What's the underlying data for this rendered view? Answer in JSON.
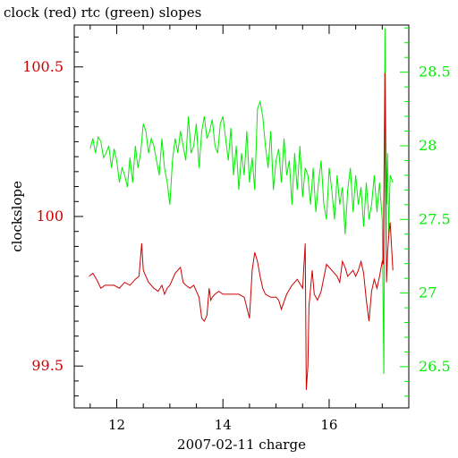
{
  "chart_data": {
    "type": "line",
    "title": "clock (red) rtc (green) slopes",
    "xlabel": "2007-02-11 charge",
    "ylabel_left": "clockslope",
    "xlim": [
      11.2,
      17.5
    ],
    "ylim_left": [
      99.36,
      100.64
    ],
    "ylim_right": [
      26.22,
      28.82
    ],
    "x_ticks": [
      12,
      14,
      16
    ],
    "y_left_ticks": [
      99.5,
      100,
      100.5
    ],
    "y_right_ticks": [
      26.5,
      27,
      27.5,
      28,
      28.5
    ],
    "grid": false,
    "colors": {
      "clock": "#cc0000",
      "rtc": "#00ee00",
      "axis": "#000000"
    },
    "series": [
      {
        "name": "clock",
        "axis": "left",
        "x": [
          11.48,
          11.55,
          11.62,
          11.7,
          11.78,
          11.85,
          11.95,
          12.05,
          12.15,
          12.25,
          12.35,
          12.42,
          12.47,
          12.5,
          12.55,
          12.6,
          12.7,
          12.78,
          12.85,
          12.9,
          12.95,
          13.0,
          13.1,
          13.2,
          13.25,
          13.3,
          13.38,
          13.45,
          13.5,
          13.55,
          13.6,
          13.65,
          13.7,
          13.74,
          13.77,
          13.8,
          13.85,
          13.92,
          14.0,
          14.1,
          14.2,
          14.3,
          14.4,
          14.5,
          14.55,
          14.6,
          14.65,
          14.7,
          14.75,
          14.8,
          14.9,
          15.0,
          15.05,
          15.1,
          15.2,
          15.3,
          15.4,
          15.5,
          15.55,
          15.57,
          15.6,
          15.62,
          15.65,
          15.68,
          15.72,
          15.78,
          15.85,
          15.95,
          16.05,
          16.15,
          16.2,
          16.25,
          16.3,
          16.35,
          16.45,
          16.5,
          16.55,
          16.6,
          16.65,
          16.7,
          16.75,
          16.8,
          16.85,
          16.9,
          16.95,
          17.0,
          17.02,
          17.05,
          17.08,
          17.1,
          17.13,
          17.15,
          17.2
        ],
        "values": [
          99.8,
          99.81,
          99.79,
          99.76,
          99.77,
          99.77,
          99.77,
          99.76,
          99.78,
          99.77,
          99.79,
          99.8,
          99.91,
          99.82,
          99.8,
          99.78,
          99.76,
          99.75,
          99.77,
          99.74,
          99.76,
          99.77,
          99.81,
          99.83,
          99.78,
          99.77,
          99.76,
          99.77,
          99.75,
          99.73,
          99.66,
          99.65,
          99.67,
          99.76,
          99.72,
          99.73,
          99.74,
          99.75,
          99.74,
          99.74,
          99.74,
          99.74,
          99.73,
          99.66,
          99.82,
          99.88,
          99.85,
          99.8,
          99.76,
          99.74,
          99.73,
          99.73,
          99.72,
          99.69,
          99.74,
          99.77,
          99.79,
          99.76,
          99.91,
          99.42,
          99.5,
          99.7,
          99.76,
          99.82,
          99.74,
          99.72,
          99.75,
          99.84,
          99.82,
          99.8,
          99.78,
          99.85,
          99.83,
          99.8,
          99.82,
          99.8,
          99.82,
          99.85,
          99.81,
          99.72,
          99.65,
          99.75,
          99.79,
          99.76,
          99.8,
          99.85,
          99.84,
          100.48,
          99.78,
          99.88,
          99.95,
          99.98,
          99.82
        ]
      },
      {
        "name": "rtc",
        "axis": "right",
        "x": [
          11.5,
          11.55,
          11.6,
          11.65,
          11.7,
          11.75,
          11.8,
          11.85,
          11.9,
          11.95,
          12.0,
          12.05,
          12.1,
          12.15,
          12.2,
          12.25,
          12.3,
          12.35,
          12.4,
          12.45,
          12.5,
          12.55,
          12.6,
          12.65,
          12.7,
          12.75,
          12.8,
          12.85,
          12.9,
          12.95,
          13.0,
          13.05,
          13.1,
          13.15,
          13.2,
          13.25,
          13.3,
          13.35,
          13.4,
          13.45,
          13.5,
          13.55,
          13.6,
          13.65,
          13.7,
          13.75,
          13.8,
          13.85,
          13.9,
          13.95,
          14.0,
          14.05,
          14.1,
          14.15,
          14.2,
          14.25,
          14.3,
          14.35,
          14.4,
          14.45,
          14.5,
          14.55,
          14.6,
          14.65,
          14.7,
          14.75,
          14.8,
          14.85,
          14.9,
          14.95,
          15.0,
          15.05,
          15.1,
          15.15,
          15.2,
          15.25,
          15.3,
          15.35,
          15.4,
          15.45,
          15.5,
          15.55,
          15.6,
          15.65,
          15.7,
          15.75,
          15.8,
          15.85,
          15.9,
          15.95,
          16.0,
          16.05,
          16.1,
          16.15,
          16.2,
          16.25,
          16.3,
          16.35,
          16.4,
          16.45,
          16.5,
          16.55,
          16.6,
          16.65,
          16.7,
          16.75,
          16.8,
          16.85,
          16.9,
          16.95,
          17.0,
          17.03,
          17.05,
          17.08,
          17.1,
          17.12,
          17.15,
          17.2
        ],
        "values": [
          27.98,
          28.05,
          27.95,
          28.06,
          28.03,
          27.92,
          27.95,
          28.0,
          27.85,
          27.98,
          27.9,
          27.75,
          27.85,
          27.8,
          27.72,
          27.92,
          27.75,
          28.0,
          27.85,
          27.95,
          28.15,
          28.1,
          27.95,
          28.05,
          28.0,
          27.9,
          27.8,
          28.05,
          27.85,
          27.75,
          27.6,
          27.9,
          28.05,
          27.95,
          28.1,
          28.0,
          27.9,
          28.2,
          27.95,
          28.0,
          28.15,
          27.85,
          28.1,
          28.2,
          28.05,
          28.1,
          28.18,
          28.0,
          27.95,
          28.15,
          28.2,
          28.05,
          27.9,
          28.12,
          27.8,
          28.0,
          27.7,
          27.95,
          27.8,
          28.1,
          27.75,
          27.92,
          27.7,
          28.25,
          28.3,
          28.2,
          28.0,
          27.85,
          28.1,
          27.7,
          27.9,
          27.98,
          27.75,
          28.05,
          27.8,
          27.9,
          27.6,
          27.95,
          27.7,
          28.0,
          27.65,
          27.85,
          27.8,
          27.6,
          27.85,
          27.55,
          27.75,
          27.9,
          27.6,
          27.5,
          27.85,
          27.7,
          27.5,
          27.8,
          27.6,
          27.72,
          27.4,
          27.7,
          27.85,
          27.55,
          27.8,
          27.6,
          27.72,
          27.45,
          27.75,
          27.5,
          27.6,
          27.8,
          27.55,
          27.75,
          27.5,
          26.45,
          28.8,
          27.6,
          27.95,
          27.4,
          27.8,
          27.75
        ]
      }
    ]
  }
}
